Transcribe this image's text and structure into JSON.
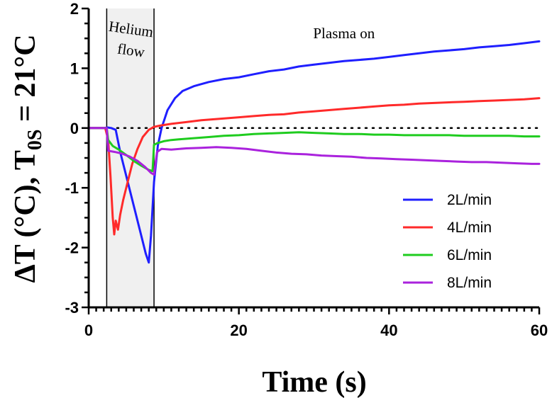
{
  "chart_data": {
    "type": "line",
    "xlabel": "Time (s)",
    "ylabel": {
      "prefix": "ΔT (°C), T",
      "subscript": "0S",
      "suffix": " = 21°C"
    },
    "xlim": [
      0,
      60
    ],
    "ylim": [
      -3,
      2
    ],
    "xticks": [
      0,
      20,
      40,
      60
    ],
    "yticks": [
      -3,
      -2,
      -1,
      0,
      1,
      2
    ],
    "x_minor_step": 1,
    "y_minor_step": 0.25,
    "reference_line": {
      "y": 0,
      "style": "dotted"
    },
    "regions": [
      {
        "x_start": 2.4,
        "x_end": 8.7,
        "label_lines": [
          "Helium",
          "flow"
        ],
        "fill": "#f0f0f0"
      }
    ],
    "annotations": [
      {
        "text": "Plasma on",
        "x": 34,
        "y": 1.6
      }
    ],
    "legend_position": "bottom-right",
    "series": [
      {
        "name": "2L/min",
        "color": "#1f1fff",
        "points": [
          [
            0,
            0
          ],
          [
            2,
            0
          ],
          [
            2.5,
            0.01
          ],
          [
            3,
            0.0
          ],
          [
            3.6,
            -0.03
          ],
          [
            4.2,
            -0.4
          ],
          [
            5,
            -0.8
          ],
          [
            6,
            -1.3
          ],
          [
            7,
            -1.8
          ],
          [
            7.6,
            -2.1
          ],
          [
            8.0,
            -2.25
          ],
          [
            8.3,
            -1.8
          ],
          [
            8.7,
            -0.9
          ],
          [
            9.2,
            -0.3
          ],
          [
            9.7,
            0.0
          ],
          [
            10.5,
            0.3
          ],
          [
            11.5,
            0.5
          ],
          [
            12.5,
            0.62
          ],
          [
            14,
            0.7
          ],
          [
            16,
            0.77
          ],
          [
            18,
            0.82
          ],
          [
            20,
            0.85
          ],
          [
            22,
            0.9
          ],
          [
            24,
            0.95
          ],
          [
            26,
            0.98
          ],
          [
            28,
            1.03
          ],
          [
            30,
            1.06
          ],
          [
            32,
            1.09
          ],
          [
            34,
            1.12
          ],
          [
            36,
            1.14
          ],
          [
            38,
            1.16
          ],
          [
            40,
            1.19
          ],
          [
            42,
            1.22
          ],
          [
            44,
            1.25
          ],
          [
            46,
            1.28
          ],
          [
            48,
            1.3
          ],
          [
            50,
            1.32
          ],
          [
            52,
            1.35
          ],
          [
            54,
            1.37
          ],
          [
            56,
            1.39
          ],
          [
            58,
            1.42
          ],
          [
            60,
            1.45
          ]
        ]
      },
      {
        "name": "4L/min",
        "color": "#ff2a2a",
        "points": [
          [
            0,
            0
          ],
          [
            2.2,
            0
          ],
          [
            2.6,
            -0.2
          ],
          [
            2.9,
            -0.8
          ],
          [
            3.2,
            -1.5
          ],
          [
            3.4,
            -1.78
          ],
          [
            3.6,
            -1.55
          ],
          [
            3.9,
            -1.7
          ],
          [
            4.2,
            -1.45
          ],
          [
            4.6,
            -1.2
          ],
          [
            5.2,
            -0.9
          ],
          [
            5.8,
            -0.6
          ],
          [
            6.5,
            -0.35
          ],
          [
            7.2,
            -0.15
          ],
          [
            8,
            -0.03
          ],
          [
            8.7,
            0.02
          ],
          [
            9.5,
            0.04
          ],
          [
            11,
            0.07
          ],
          [
            13,
            0.1
          ],
          [
            15,
            0.13
          ],
          [
            17,
            0.15
          ],
          [
            20,
            0.18
          ],
          [
            22,
            0.2
          ],
          [
            24,
            0.22
          ],
          [
            26,
            0.23
          ],
          [
            28,
            0.26
          ],
          [
            30,
            0.28
          ],
          [
            32,
            0.3
          ],
          [
            34,
            0.32
          ],
          [
            36,
            0.34
          ],
          [
            38,
            0.36
          ],
          [
            40,
            0.38
          ],
          [
            42,
            0.39
          ],
          [
            44,
            0.41
          ],
          [
            46,
            0.42
          ],
          [
            48,
            0.43
          ],
          [
            50,
            0.44
          ],
          [
            52,
            0.45
          ],
          [
            54,
            0.46
          ],
          [
            56,
            0.47
          ],
          [
            58,
            0.48
          ],
          [
            60,
            0.5
          ]
        ]
      },
      {
        "name": "6L/min",
        "color": "#1fcc1f",
        "points": [
          [
            0,
            0
          ],
          [
            2.4,
            0
          ],
          [
            2.6,
            -0.2
          ],
          [
            3.2,
            -0.3
          ],
          [
            4,
            -0.36
          ],
          [
            5,
            -0.45
          ],
          [
            6,
            -0.55
          ],
          [
            7,
            -0.63
          ],
          [
            8,
            -0.7
          ],
          [
            8.5,
            -0.72
          ],
          [
            8.7,
            -0.28
          ],
          [
            9.2,
            -0.25
          ],
          [
            10,
            -0.22
          ],
          [
            11,
            -0.2
          ],
          [
            12,
            -0.19
          ],
          [
            14,
            -0.17
          ],
          [
            16,
            -0.15
          ],
          [
            18,
            -0.13
          ],
          [
            20,
            -0.12
          ],
          [
            22,
            -0.1
          ],
          [
            24,
            -0.09
          ],
          [
            26,
            -0.08
          ],
          [
            28,
            -0.07
          ],
          [
            30,
            -0.08
          ],
          [
            32,
            -0.09
          ],
          [
            34,
            -0.1
          ],
          [
            36,
            -0.1
          ],
          [
            38,
            -0.11
          ],
          [
            40,
            -0.11
          ],
          [
            42,
            -0.12
          ],
          [
            44,
            -0.12
          ],
          [
            46,
            -0.12
          ],
          [
            48,
            -0.12
          ],
          [
            50,
            -0.13
          ],
          [
            52,
            -0.13
          ],
          [
            54,
            -0.13
          ],
          [
            56,
            -0.13
          ],
          [
            58,
            -0.14
          ],
          [
            60,
            -0.14
          ]
        ]
      },
      {
        "name": "8L/min",
        "color": "#aa22dd",
        "points": [
          [
            0,
            0
          ],
          [
            2.4,
            0
          ],
          [
            2.6,
            -0.38
          ],
          [
            3.5,
            -0.4
          ],
          [
            4.5,
            -0.43
          ],
          [
            5.5,
            -0.48
          ],
          [
            6.5,
            -0.55
          ],
          [
            7.5,
            -0.65
          ],
          [
            8.3,
            -0.75
          ],
          [
            8.7,
            -0.78
          ],
          [
            9.1,
            -0.4
          ],
          [
            9.7,
            -0.35
          ],
          [
            11,
            -0.36
          ],
          [
            13,
            -0.34
          ],
          [
            15,
            -0.33
          ],
          [
            17,
            -0.32
          ],
          [
            19,
            -0.33
          ],
          [
            21,
            -0.35
          ],
          [
            23,
            -0.38
          ],
          [
            25,
            -0.41
          ],
          [
            27,
            -0.43
          ],
          [
            29,
            -0.44
          ],
          [
            31,
            -0.46
          ],
          [
            33,
            -0.47
          ],
          [
            35,
            -0.48
          ],
          [
            37,
            -0.5
          ],
          [
            39,
            -0.51
          ],
          [
            41,
            -0.52
          ],
          [
            43,
            -0.53
          ],
          [
            45,
            -0.54
          ],
          [
            47,
            -0.55
          ],
          [
            49,
            -0.56
          ],
          [
            51,
            -0.57
          ],
          [
            53,
            -0.57
          ],
          [
            55,
            -0.58
          ],
          [
            57,
            -0.59
          ],
          [
            59,
            -0.6
          ],
          [
            60,
            -0.6
          ]
        ]
      }
    ]
  }
}
